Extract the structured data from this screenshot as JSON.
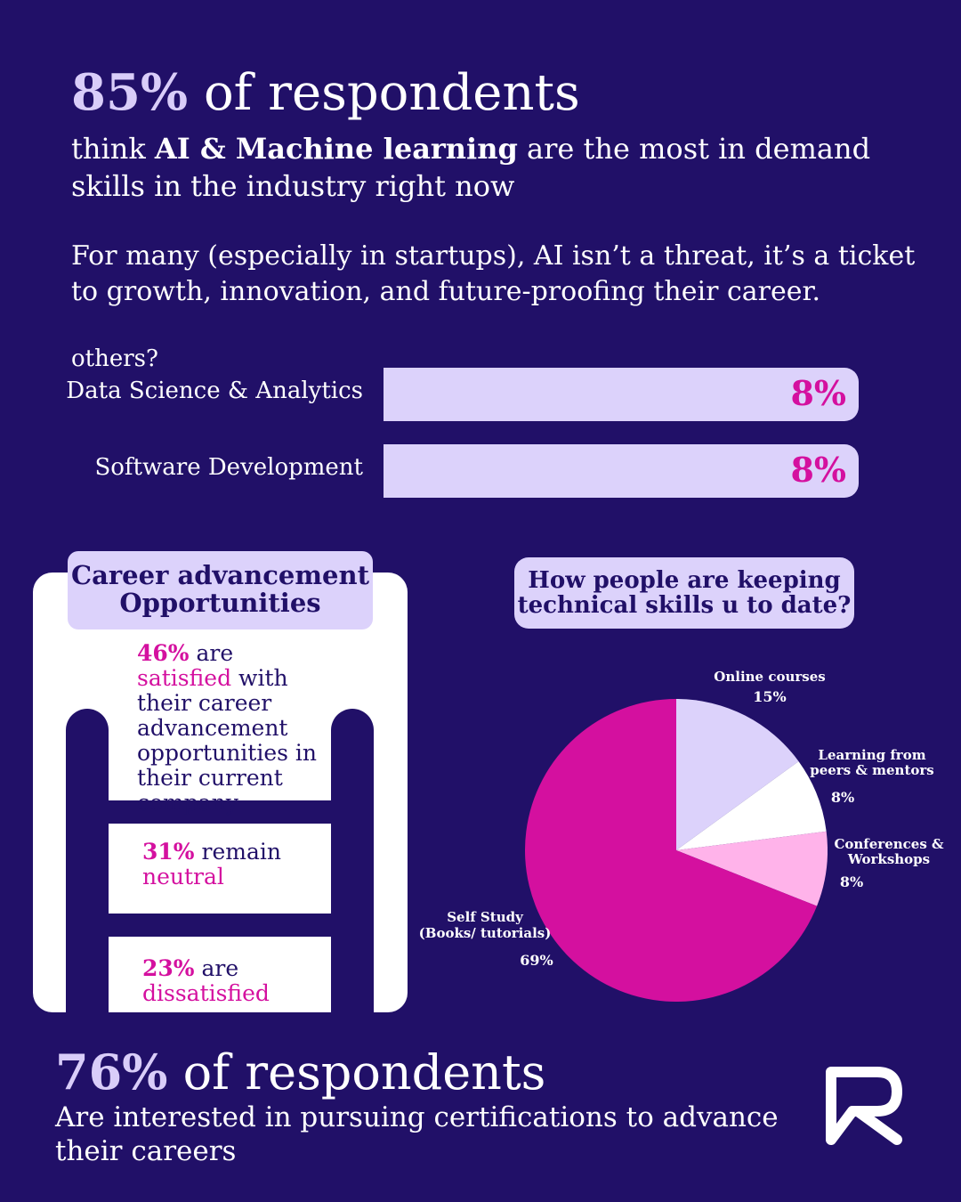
{
  "header": {
    "headline_num": "85%",
    "headline_rest": " of respondents",
    "sub_pre": "think ",
    "sub_bold": "AI & Machine learning",
    "sub_post": " are the most in demand skills in the industry right now",
    "paragraph": "For many (especially in startups), AI isn’t a threat, it’s a ticket to growth, innovation, and future-proofing their career."
  },
  "others_label": "others?",
  "chart_data": [
    {
      "type": "bar",
      "categories": [
        "Data Science & Analytics",
        "Software Development"
      ],
      "values": [
        8,
        8
      ],
      "value_labels": [
        "8%",
        "8%"
      ]
    },
    {
      "type": "pie",
      "title": "How people are keeping technical skills u to date?",
      "slices": [
        {
          "label": "Online courses",
          "value": 15,
          "value_label": "15%",
          "color": "#dcd2fb"
        },
        {
          "label": "Learning from peers & mentors",
          "value": 8,
          "value_label": "8%",
          "color": "#ffffff"
        },
        {
          "label": "Conferences & Workshops",
          "value": 8,
          "value_label": "8%",
          "color": "#ffb3ea"
        },
        {
          "label": "Self Study (Books/ tutorials)",
          "value": 69,
          "value_label": "69%",
          "color": "#d4109f"
        }
      ]
    }
  ],
  "career": {
    "title_line1": "Career advancement",
    "title_line2": "Opportunities",
    "items": [
      {
        "num": "46%",
        "mid": " are ",
        "pink": "satisfied",
        "rest": "with their career advancement opportunities in their current company"
      },
      {
        "num": "31%",
        "mid": " remain",
        "pink": "neutral",
        "rest": ""
      },
      {
        "num": "23%",
        "mid": " are",
        "pink": "dissatisfied",
        "rest": ""
      }
    ]
  },
  "pie_labels": {
    "online_line1": "Online courses",
    "peers_line1": "Learning from",
    "peers_line2": "peers & mentors",
    "conf_line1": "Conferences &",
    "conf_line2": "Workshops",
    "self_line1": "Self Study",
    "self_line2": "(Books/ tutorials)"
  },
  "footer": {
    "headline_num": "76%",
    "headline_rest": " of respondents",
    "sub": "Are interested in pursuing certifications to advance their careers"
  },
  "colors": {
    "background": "#211068",
    "lavender": "#dcd2fb",
    "magenta": "#d4109f",
    "light_pink": "#ffb3ea"
  },
  "logo": {
    "icon": "brand-logo-icon"
  }
}
